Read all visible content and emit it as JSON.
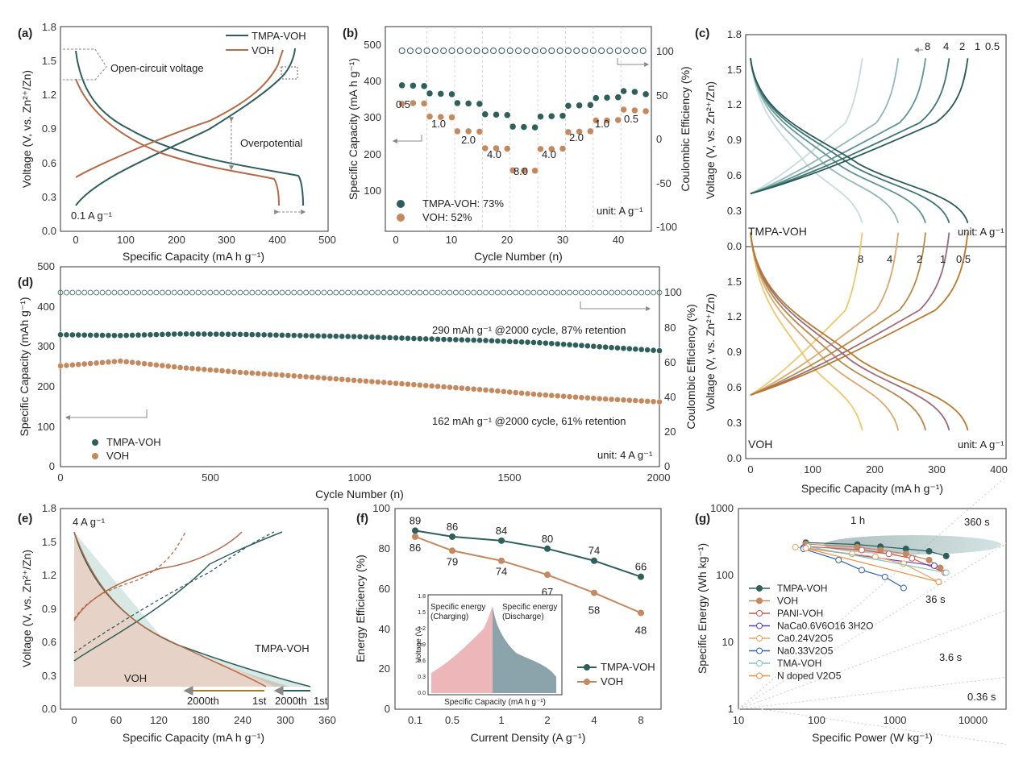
{
  "panels": {
    "a": {
      "label": "(a)",
      "xlabel": "Specific Capacity (mA h g⁻¹)",
      "ylabel": "Voltage (V, vs. Zn²⁺/Zn)",
      "legend": [
        "TMPA-VOH",
        "VOH"
      ],
      "annotations": {
        "ocv": "Open-circuit voltage",
        "overpotential": "Overpotential",
        "rate": "0.1 A g⁻¹"
      },
      "xticks": [
        "0",
        "100",
        "200",
        "300",
        "400",
        "500"
      ],
      "yticks": [
        "0.0",
        "0.3",
        "0.6",
        "0.9",
        "1.2",
        "1.5",
        "1.8"
      ]
    },
    "b": {
      "label": "(b)",
      "xlabel": "Cycle Number (n)",
      "ylabel": "Specific Capacity (mA h g⁻¹)",
      "ylabel2": "Coulombic Efficiency (%)",
      "legend": [
        "TMPA-VOH: 73%",
        "VOH: 52%"
      ],
      "unit": "unit: A g⁻¹",
      "rate_labels": [
        "0.5",
        "1.0",
        "2.0",
        "4.0",
        "8.0",
        "4.0",
        "2.0",
        "1.0",
        "0.5"
      ],
      "xticks": [
        "0",
        "10",
        "20",
        "30",
        "40"
      ],
      "yticks": [
        "100",
        "200",
        "300",
        "400",
        "500"
      ],
      "y2ticks": [
        "-100",
        "-50",
        "0",
        "50",
        "100"
      ]
    },
    "c": {
      "label": "(c)",
      "xlabel": "Specific Capacity (mA h g⁻¹)",
      "ylabel_top": "Voltage (V, vs. Zn²⁺/Zn)",
      "ylabel_bottom": "Voltage (V, vs. Zn²⁺/Zn)",
      "top_name": "TMPA-VOH",
      "bottom_name": "VOH",
      "unit": "unit: A g⁻¹",
      "rates_top": [
        "8",
        "4",
        "2",
        "1",
        "0.5"
      ],
      "rates_bottom": [
        "8",
        "4",
        "2",
        "1",
        "0.5"
      ],
      "xticks": [
        "0",
        "100",
        "200",
        "300",
        "400"
      ],
      "yticks_top": [
        "0.0",
        "0.3",
        "0.6",
        "0.9",
        "1.2",
        "1.5",
        "1.8"
      ],
      "yticks_bottom": [
        "0.0",
        "0.3",
        "0.6",
        "0.9",
        "1.2",
        "1.5"
      ]
    },
    "d": {
      "label": "(d)",
      "xlabel": "Cycle Number (n)",
      "ylabel": "Specific Capacity (mAh g⁻¹)",
      "ylabel2": "Coulombic Efficiency (%)",
      "legend": [
        "TMPA-VOH",
        "VOH"
      ],
      "ann1": "290 mAh g⁻¹ @2000 cycle, 87% retention",
      "ann2": "162 mAh g⁻¹ @2000 cycle, 61% retention",
      "unit": "unit: 4 A g⁻¹",
      "xticks": [
        "0",
        "500",
        "1000",
        "1500",
        "2000"
      ],
      "yticks": [
        "0",
        "100",
        "200",
        "300",
        "400",
        "500"
      ],
      "y2ticks": [
        "0",
        "20",
        "40",
        "60",
        "80",
        "100"
      ]
    },
    "e": {
      "label": "(e)",
      "xlabel": "Specific Capacity (mA h g⁻¹)",
      "ylabel": "Voltage (V, vs. Zn²⁺/Zn)",
      "rate": "4 A g⁻¹",
      "name1": "TMPA-VOH",
      "name2": "VOH",
      "c2000": "2000th",
      "c1": "1st",
      "xticks": [
        "0",
        "60",
        "120",
        "180",
        "240",
        "300",
        "360"
      ],
      "yticks": [
        "0.0",
        "0.3",
        "0.6",
        "0.9",
        "1.2",
        "1.5",
        "1.8"
      ]
    },
    "f": {
      "label": "(f)",
      "xlabel": "Current Density (A g⁻¹)",
      "ylabel": "Energy Efficiency (%)",
      "legend": [
        "TMPA-VOH",
        "VOH"
      ],
      "inset": {
        "ylabel": "Voltage (V)",
        "xlabel": "Specific Capacity (mA h g⁻¹)",
        "left": "Specific energy\n(Charging)",
        "right": "Specific energy\n(Discharge)",
        "yticks": [
          "0.0",
          "0.3",
          "0.6",
          "0.9",
          "1.2",
          "1.5",
          "1.8"
        ]
      },
      "xticks": [
        "0.1",
        "0.5",
        "1",
        "2",
        "4",
        "8"
      ],
      "yticks": [
        "0",
        "20",
        "40",
        "60",
        "80",
        "100"
      ]
    },
    "g": {
      "label": "(g)",
      "xlabel": "Specific Power (W kg⁻¹)",
      "ylabel": "Specific Energy (Wh kg⁻¹)",
      "time_labels": [
        "1 h",
        "360 s",
        "36 s",
        "3.6 s",
        "0.36 s"
      ],
      "legend": [
        "TMPA-VOH",
        "VOH",
        "PANI-VOH",
        "NaCa0.6V6O16 3H2O",
        "Ca0.24V2O5",
        "Na0.33V2O5",
        "TMA-VOH",
        "N doped V2O5"
      ],
      "xticks": [
        "10",
        "100",
        "1000",
        "10000"
      ],
      "yticks": [
        "1",
        "10",
        "100",
        "1000"
      ]
    }
  },
  "chart_data": [
    {
      "panel": "a",
      "type": "line",
      "x": [
        0,
        100,
        200,
        300,
        400,
        450
      ],
      "series": [
        {
          "name": "TMPA-VOH",
          "values": [
            0.45,
            0.6,
            0.8,
            0.95,
            1.2,
            1.6
          ]
        },
        {
          "name": "VOH",
          "values": [
            0.45,
            0.65,
            0.85,
            1.05,
            1.5,
            1.6
          ]
        }
      ],
      "xlim": [
        -20,
        500
      ],
      "ylim": [
        0,
        1.8
      ]
    },
    {
      "panel": "b",
      "type": "scatter",
      "x": [
        1,
        3,
        5,
        6,
        8,
        10,
        11,
        13,
        15,
        16,
        18,
        20,
        21,
        23,
        25,
        26,
        28,
        30,
        31,
        33,
        35,
        36,
        38,
        40,
        41,
        43,
        45
      ],
      "series": [
        {
          "name": "TMPA-VOH: 73%",
          "values": [
            403,
            402,
            401,
            382,
            381,
            380,
            357,
            356,
            355,
            328,
            327,
            326,
            296,
            295,
            294,
            322,
            323,
            324,
            350,
            351,
            352,
            370,
            371,
            372,
            388,
            386,
            380
          ]
        },
        {
          "name": "VOH: 52%",
          "values": [
            355,
            357,
            356,
            322,
            321,
            320,
            284,
            284,
            283,
            240,
            240,
            239,
            183,
            182,
            182,
            238,
            238,
            239,
            282,
            283,
            284,
            312,
            312,
            313,
            340,
            338,
            336
          ]
        }
      ],
      "ylim": [
        100,
        500
      ]
    },
    {
      "panel": "d",
      "type": "scatter",
      "series": [
        {
          "name": "TMPA-VOH",
          "values": [
            330,
            328,
            332,
            331,
            328,
            325,
            320,
            316,
            310,
            300,
            290
          ]
        },
        {
          "name": "VOH",
          "values": [
            252,
            264,
            248,
            236,
            226,
            215,
            204,
            193,
            180,
            170,
            162
          ]
        }
      ],
      "x": [
        0,
        200,
        400,
        600,
        800,
        1000,
        1200,
        1400,
        1600,
        1800,
        2000
      ],
      "ylim": [
        0,
        500
      ]
    },
    {
      "panel": "f",
      "type": "line",
      "categories": [
        "0.1",
        "0.5",
        "1",
        "2",
        "4",
        "8"
      ],
      "series": [
        {
          "name": "TMPA-VOH",
          "values": [
            89,
            86,
            84,
            80,
            74,
            66
          ]
        },
        {
          "name": "VOH",
          "values": [
            86,
            79,
            74,
            67,
            58,
            48
          ]
        }
      ],
      "ylim": [
        0,
        100
      ]
    },
    {
      "panel": "g",
      "type": "scatter",
      "series": [
        {
          "name": "TMPA-VOH",
          "x": [
            75,
            350,
            700,
            1500,
            3000,
            5000
          ],
          "y": [
            310,
            290,
            270,
            250,
            230,
            195
          ]
        },
        {
          "name": "VOH",
          "x": [
            75,
            350,
            700,
            1500,
            3000,
            4200
          ],
          "y": [
            295,
            265,
            240,
            210,
            170,
            130
          ]
        },
        {
          "name": "PANI-VOH",
          "x": [
            80,
            400,
            900,
            1800,
            4800
          ],
          "y": [
            270,
            240,
            210,
            180,
            110
          ]
        },
        {
          "name": "NaCa0.6V6O16 3H2O",
          "x": [
            70,
            3500
          ],
          "y": [
            260,
            140
          ]
        },
        {
          "name": "Ca0.24V2O5",
          "x": [
            55,
            300,
            600,
            1400,
            4000
          ],
          "y": [
            265,
            210,
            190,
            150,
            80
          ]
        },
        {
          "name": "Na0.33V2O5",
          "x": [
            70,
            200,
            400,
            800,
            1400
          ],
          "y": [
            250,
            170,
            120,
            95,
            65
          ]
        },
        {
          "name": "TMA-VOH",
          "x": [
            80,
            5000
          ],
          "y": [
            270,
            110
          ]
        },
        {
          "name": "N doped V2O5",
          "x": [
            75,
            4000
          ],
          "y": [
            255,
            80
          ]
        }
      ]
    }
  ]
}
